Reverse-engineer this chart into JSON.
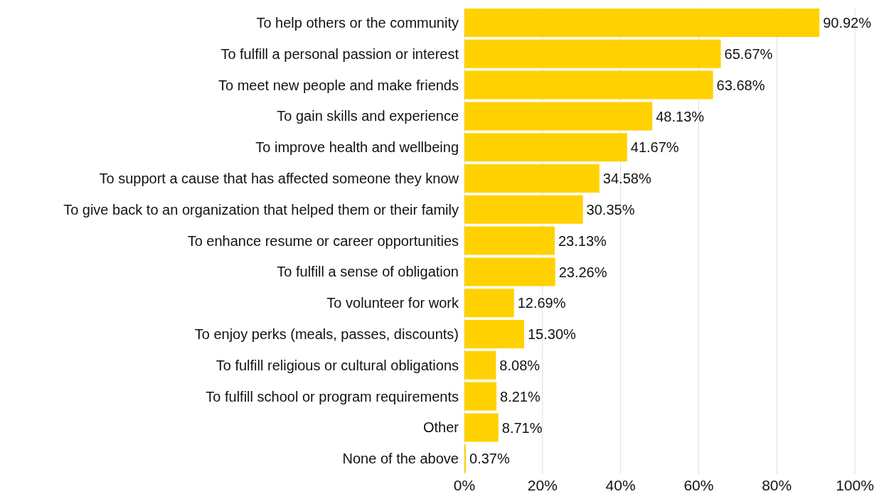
{
  "chart_data": {
    "type": "bar",
    "orientation": "horizontal",
    "categories": [
      "To help others or the community",
      "To fulfill a personal passion or interest",
      "To meet new people and make friends",
      "To gain skills and experience",
      "To improve health and wellbeing",
      "To support a cause that has affected someone they know",
      "To give back to an organization that helped them or their family",
      "To enhance resume or career opportunities",
      "To fulfill a sense of obligation",
      "To volunteer for work",
      "To enjoy perks (meals, passes, discounts)",
      "To fulfill religious or cultural obligations",
      "To fulfill school or program requirements",
      "Other",
      "None of the above"
    ],
    "values": [
      90.92,
      65.67,
      63.68,
      48.13,
      41.67,
      34.58,
      30.35,
      23.13,
      23.26,
      12.69,
      15.3,
      8.08,
      8.21,
      8.71,
      0.37
    ],
    "value_labels": [
      "90.92%",
      "65.67%",
      "63.68%",
      "48.13%",
      "41.67%",
      "34.58%",
      "30.35%",
      "23.13%",
      "23.26%",
      "12.69%",
      "15.30%",
      "8.08%",
      "8.21%",
      "8.71%",
      "0.37%"
    ],
    "color": "#ffd100",
    "xlim": [
      0,
      100
    ],
    "xticks": [
      {
        "value": 0,
        "label": "0%"
      },
      {
        "value": 20,
        "label": "20%"
      },
      {
        "value": 40,
        "label": "40%"
      },
      {
        "value": 60,
        "label": "60%"
      },
      {
        "value": 80,
        "label": "80%"
      },
      {
        "value": 100,
        "label": "100%"
      }
    ],
    "grid": "x",
    "legend": false
  }
}
